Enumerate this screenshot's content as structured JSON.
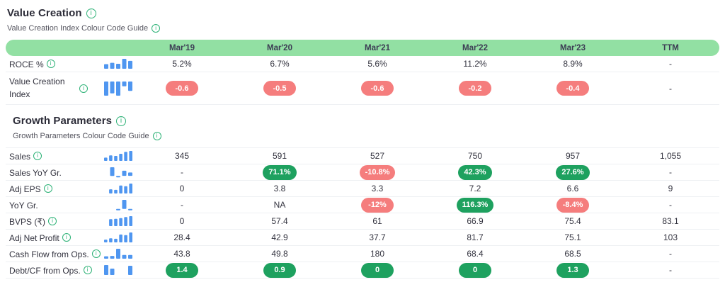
{
  "colors": {
    "header_bg": "#92e0a3",
    "header_text": "#3c3c54",
    "red_pill": "#f57d7d",
    "green_pill": "#1ea15f",
    "spark_blue": "#4f96f0",
    "info_green": "#2eb277"
  },
  "info_glyph": "i",
  "columns": [
    "Mar'19",
    "Mar'20",
    "Mar'21",
    "Mar'22",
    "Mar'23",
    "TTM"
  ],
  "sections": [
    {
      "id": "value-creation",
      "title": "Value Creation",
      "subtitle": "Value Creation Index Colour Code Guide",
      "show_column_header": true,
      "rows": [
        {
          "label": "ROCE %",
          "info": true,
          "tall": false,
          "spark": [
            5.2,
            6.7,
            5.6,
            11.2,
            8.9
          ],
          "cells": [
            {
              "t": "5.2%"
            },
            {
              "t": "6.7%"
            },
            {
              "t": "5.6%"
            },
            {
              "t": "11.2%"
            },
            {
              "t": "8.9%"
            },
            {
              "t": "-"
            }
          ]
        },
        {
          "label": "Value Creation Index",
          "info": true,
          "tall": true,
          "spark": [
            -0.6,
            -0.5,
            -0.6,
            -0.2,
            -0.4
          ],
          "cells": [
            {
              "t": "-0.6",
              "s": "red"
            },
            {
              "t": "-0.5",
              "s": "red"
            },
            {
              "t": "-0.6",
              "s": "red"
            },
            {
              "t": "-0.2",
              "s": "red"
            },
            {
              "t": "-0.4",
              "s": "red"
            },
            {
              "t": "-"
            }
          ]
        }
      ]
    },
    {
      "id": "growth-parameters",
      "title": "Growth Parameters",
      "subtitle": "Growth Parameters Colour Code Guide",
      "show_column_header": false,
      "rows": [
        {
          "label": "Sales",
          "info": true,
          "tall": false,
          "spark": [
            345,
            591,
            527,
            750,
            957,
            1055
          ],
          "cells": [
            {
              "t": "345"
            },
            {
              "t": "591"
            },
            {
              "t": "527"
            },
            {
              "t": "750"
            },
            {
              "t": "957"
            },
            {
              "t": "1,055"
            }
          ]
        },
        {
          "label": "Sales YoY Gr.",
          "info": false,
          "tall": false,
          "spark": [
            null,
            71.1,
            -10.8,
            42.3,
            27.6
          ],
          "cells": [
            {
              "t": "-"
            },
            {
              "t": "71.1%",
              "s": "green"
            },
            {
              "t": "-10.8%",
              "s": "red"
            },
            {
              "t": "42.3%",
              "s": "green"
            },
            {
              "t": "27.6%",
              "s": "green"
            },
            {
              "t": "-"
            }
          ]
        },
        {
          "label": "Adj EPS",
          "info": true,
          "tall": false,
          "spark": [
            0,
            3.8,
            3.3,
            7.2,
            6.6,
            9
          ],
          "cells": [
            {
              "t": "0"
            },
            {
              "t": "3.8"
            },
            {
              "t": "3.3"
            },
            {
              "t": "7.2"
            },
            {
              "t": "6.6"
            },
            {
              "t": "9"
            }
          ]
        },
        {
          "label": "YoY Gr.",
          "info": false,
          "tall": false,
          "spark": [
            null,
            null,
            -12,
            116.3,
            -8.4
          ],
          "cells": [
            {
              "t": "-"
            },
            {
              "t": "NA"
            },
            {
              "t": "-12%",
              "s": "red"
            },
            {
              "t": "116.3%",
              "s": "green"
            },
            {
              "t": "-8.4%",
              "s": "red"
            },
            {
              "t": "-"
            }
          ]
        },
        {
          "label": "BVPS (₹)",
          "info": true,
          "tall": false,
          "spark": [
            0,
            57.4,
            61,
            66.9,
            75.4,
            83.1
          ],
          "cells": [
            {
              "t": "0"
            },
            {
              "t": "57.4"
            },
            {
              "t": "61"
            },
            {
              "t": "66.9"
            },
            {
              "t": "75.4"
            },
            {
              "t": "83.1"
            }
          ]
        },
        {
          "label": "Adj Net Profit",
          "info": true,
          "tall": false,
          "spark": [
            28.4,
            42.9,
            37.7,
            81.7,
            75.1,
            103
          ],
          "cells": [
            {
              "t": "28.4"
            },
            {
              "t": "42.9"
            },
            {
              "t": "37.7"
            },
            {
              "t": "81.7"
            },
            {
              "t": "75.1"
            },
            {
              "t": "103"
            }
          ]
        },
        {
          "label": "Cash Flow from Ops.",
          "info": true,
          "tall": false,
          "spark": [
            43.8,
            49.8,
            180,
            68.4,
            68.5
          ],
          "cells": [
            {
              "t": "43.8"
            },
            {
              "t": "49.8"
            },
            {
              "t": "180"
            },
            {
              "t": "68.4"
            },
            {
              "t": "68.5"
            },
            {
              "t": "-"
            }
          ]
        },
        {
          "label": "Debt/CF from Ops.",
          "info": true,
          "tall": false,
          "spark": [
            1.4,
            0.9,
            0,
            0,
            1.3
          ],
          "cells": [
            {
              "t": "1.4",
              "s": "green"
            },
            {
              "t": "0.9",
              "s": "green"
            },
            {
              "t": "0",
              "s": "green"
            },
            {
              "t": "0",
              "s": "green"
            },
            {
              "t": "1.3",
              "s": "green"
            },
            {
              "t": "-"
            }
          ]
        }
      ]
    }
  ]
}
